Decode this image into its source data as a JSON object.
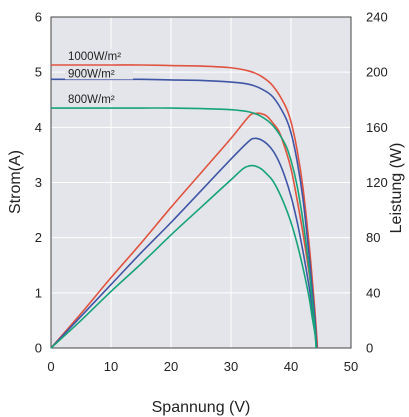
{
  "chart_data": {
    "type": "line",
    "title": "",
    "xlabel": "Spannung (V)",
    "ylabel": "Strom(A)",
    "y2label": "Leistung (W)",
    "xlim": [
      0,
      50
    ],
    "ylim": [
      0,
      6
    ],
    "y2lim": [
      0,
      240
    ],
    "xticks": [
      "0",
      "10",
      "20",
      "30",
      "40",
      "50"
    ],
    "yticks": [
      "0",
      "1",
      "2",
      "3",
      "4",
      "5",
      "6"
    ],
    "y2ticks": [
      "0",
      "40",
      "80",
      "120",
      "160",
      "200",
      "240"
    ],
    "grid": true,
    "plot_background": "#e3e5ea",
    "series": [
      {
        "name": "1000W/m²",
        "color": "#e0533f",
        "current": {
          "x": [
            0,
            5,
            10,
            15,
            20,
            25,
            30,
            33,
            35,
            37,
            39,
            40,
            41,
            42,
            43,
            43.5,
            44,
            44.3,
            44.4
          ],
          "y": [
            5.13,
            5.13,
            5.13,
            5.13,
            5.12,
            5.11,
            5.08,
            5.02,
            4.93,
            4.75,
            4.4,
            4.1,
            3.6,
            2.9,
            1.9,
            1.3,
            0.65,
            0.2,
            0
          ]
        },
        "power": {
          "x": [
            0,
            5,
            10,
            15,
            20,
            25,
            30,
            33,
            34,
            35,
            36,
            37,
            38,
            39,
            40,
            41,
            42,
            43,
            43.5,
            44,
            44.4
          ],
          "y": [
            0,
            25,
            51,
            76,
            102,
            127,
            152,
            168,
            170,
            170,
            168,
            163,
            157,
            145,
            130,
            108,
            83,
            55,
            39,
            22,
            0
          ]
        }
      },
      {
        "name": "900W/m²",
        "color": "#3f55a6",
        "current": {
          "x": [
            0,
            5,
            10,
            15,
            20,
            25,
            30,
            33,
            35,
            37,
            39,
            40,
            41,
            42,
            43,
            43.5,
            44,
            44.2,
            44.3
          ],
          "y": [
            4.87,
            4.87,
            4.87,
            4.87,
            4.86,
            4.85,
            4.82,
            4.78,
            4.7,
            4.55,
            4.2,
            3.9,
            3.4,
            2.7,
            1.7,
            1.1,
            0.5,
            0.15,
            0
          ]
        },
        "power": {
          "x": [
            0,
            5,
            10,
            15,
            20,
            25,
            30,
            33,
            34,
            35,
            36,
            37,
            38,
            39,
            40,
            41,
            42,
            43,
            43.5,
            44,
            44.3
          ],
          "y": [
            0,
            23,
            46,
            69,
            91,
            114,
            137,
            150,
            152,
            151,
            148,
            143,
            135,
            124,
            110,
            92,
            70,
            45,
            30,
            14,
            0
          ]
        }
      },
      {
        "name": "800W/m²",
        "color": "#16a37a",
        "current": {
          "x": [
            0,
            5,
            10,
            15,
            20,
            25,
            30,
            33,
            35,
            37,
            39,
            40,
            41,
            42,
            43,
            43.5,
            44,
            44.2
          ],
          "y": [
            4.35,
            4.35,
            4.35,
            4.35,
            4.35,
            4.34,
            4.32,
            4.28,
            4.2,
            4.03,
            3.7,
            3.4,
            2.95,
            2.3,
            1.45,
            0.9,
            0.35,
            0
          ]
        },
        "power": {
          "x": [
            0,
            5,
            10,
            15,
            20,
            25,
            30,
            32,
            33,
            34,
            35,
            36,
            37,
            38,
            39,
            40,
            41,
            42,
            43,
            43.5,
            44,
            44.2
          ],
          "y": [
            0,
            20,
            41,
            61,
            82,
            102,
            122,
            130,
            132,
            132,
            130,
            126,
            121,
            113,
            103,
            91,
            76,
            58,
            37,
            23,
            10,
            0
          ]
        }
      }
    ]
  }
}
